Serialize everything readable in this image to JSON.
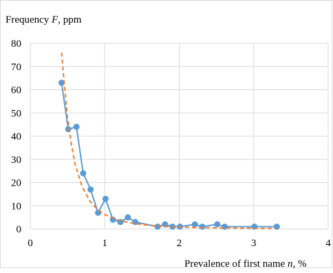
{
  "chart_data": {
    "type": "scatter",
    "title": "",
    "ylabel": "Frequency F, ppm",
    "ylabel_parts": {
      "before": "Frequency ",
      "italic": "F",
      "after": ", ppm"
    },
    "xlabel": "Prevalence of first name n, %",
    "xlabel_parts": {
      "before": "Prevalence of first name ",
      "italic": "n",
      "after": ", %"
    },
    "xlim": [
      0,
      4
    ],
    "ylim": [
      0,
      80
    ],
    "xticks": [
      0,
      1,
      2,
      3,
      4
    ],
    "yticks": [
      0,
      10,
      20,
      30,
      40,
      50,
      60,
      70,
      80
    ],
    "grid": true,
    "legend": "none",
    "series": [
      {
        "kind": "line-markers",
        "color": "#5b9bd5",
        "x": [
          0.42,
          0.51,
          0.62,
          0.71,
          0.81,
          0.91,
          1.01,
          1.11,
          1.21,
          1.31,
          1.41,
          1.71,
          1.81,
          1.91,
          2.01,
          2.21,
          2.31,
          2.51,
          2.61,
          3.01,
          3.31
        ],
        "y": [
          63,
          43,
          44,
          24,
          17,
          7,
          13,
          4,
          3,
          5,
          3,
          1,
          2,
          1,
          1,
          2,
          1,
          2,
          1,
          1,
          1
        ]
      },
      {
        "kind": "fit",
        "color": "#ed7d31",
        "dashed": true,
        "x": [
          0.42,
          0.45,
          0.5,
          0.55,
          0.6,
          0.7,
          0.8,
          0.9,
          1.0,
          1.2,
          1.4,
          1.6,
          1.8,
          2.0,
          2.4,
          2.8,
          3.3
        ],
        "y": [
          76,
          65,
          48,
          37,
          28,
          18,
          12,
          8.5,
          6.2,
          3.6,
          2.3,
          1.6,
          1.1,
          0.8,
          0.5,
          0.35,
          0.2
        ]
      }
    ]
  }
}
